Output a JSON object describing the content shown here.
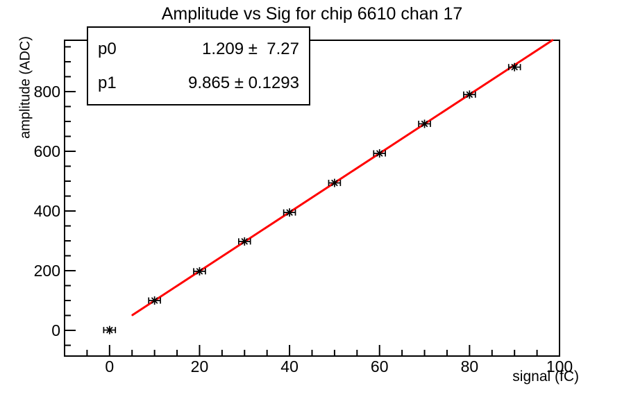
{
  "title": "Amplitude vs Sig for chip 6610 chan 17",
  "stats_box": {
    "rows": [
      {
        "name": "p0",
        "value": "1.209 ±  7.27"
      },
      {
        "name": "p1",
        "value": "9.865 ± 0.1293"
      }
    ]
  },
  "chart_data": {
    "type": "scatter",
    "title": "Amplitude vs Sig for chip 6610 chan 17",
    "xlabel": "signal (fC)",
    "ylabel": "amplitude (ADC)",
    "xlim": [
      -10,
      100
    ],
    "ylim": [
      -86,
      972
    ],
    "x_major_ticks": [
      0,
      20,
      40,
      60,
      80,
      100
    ],
    "x_minor_step": 5,
    "y_major_ticks": [
      0,
      200,
      400,
      600,
      800
    ],
    "y_minor_step": 50,
    "grid": false,
    "legend_position": "none",
    "points": {
      "x": [
        0,
        10,
        20,
        30,
        40,
        50,
        60,
        70,
        80,
        90
      ],
      "y": [
        1,
        100,
        198,
        298,
        395,
        494,
        593,
        692,
        790,
        882
      ],
      "x_err": 1.3
    },
    "fit": {
      "p0": 1.209,
      "p1": 9.865,
      "x_start": 5.1,
      "x_end": 100,
      "color": "#ff0000"
    },
    "marker": {
      "style": "star-with-horizontal-error-bars",
      "color": "#000000"
    },
    "colors": {
      "frame": "#000000",
      "background": "#ffffff"
    }
  }
}
